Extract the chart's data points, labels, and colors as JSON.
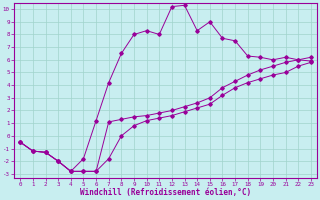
{
  "xlabel": "Windchill (Refroidissement éolien,°C)",
  "bg_color": "#c8eef0",
  "line_color": "#990099",
  "grid_color": "#a0d4cc",
  "xlim": [
    -0.5,
    23.5
  ],
  "ylim": [
    -3.3,
    10.5
  ],
  "xticks": [
    0,
    1,
    2,
    3,
    4,
    5,
    6,
    7,
    8,
    9,
    10,
    11,
    12,
    13,
    14,
    15,
    16,
    17,
    18,
    19,
    20,
    21,
    22,
    23
  ],
  "yticks": [
    -3,
    -2,
    -1,
    0,
    1,
    2,
    3,
    4,
    5,
    6,
    7,
    8,
    9,
    10
  ],
  "curve1_x": [
    0,
    1,
    2,
    3,
    4,
    5,
    6,
    7,
    8,
    9,
    10,
    11,
    12,
    13,
    14,
    15,
    16,
    17,
    18,
    19,
    20,
    21,
    22,
    23
  ],
  "curve1_y": [
    -0.5,
    -1.2,
    -1.3,
    -2.0,
    -2.8,
    -1.8,
    1.2,
    4.2,
    6.5,
    8.0,
    8.3,
    8.0,
    10.2,
    10.3,
    8.3,
    9.0,
    7.7,
    7.5,
    6.3,
    6.2,
    6.0,
    6.2,
    6.0,
    5.9
  ],
  "curve2_x": [
    0,
    1,
    2,
    3,
    4,
    5,
    6,
    7,
    8,
    9,
    10,
    11,
    12,
    13,
    14,
    15,
    16,
    17,
    18,
    19,
    20,
    21,
    22,
    23
  ],
  "curve2_y": [
    -0.5,
    -1.2,
    -1.3,
    -2.0,
    -2.8,
    -2.8,
    -2.8,
    1.1,
    1.3,
    1.5,
    1.6,
    1.8,
    2.0,
    2.3,
    2.6,
    3.0,
    3.8,
    4.3,
    4.8,
    5.2,
    5.5,
    5.8,
    6.0,
    6.2
  ],
  "curve3_x": [
    0,
    1,
    2,
    3,
    4,
    5,
    6,
    7,
    8,
    9,
    10,
    11,
    12,
    13,
    14,
    15,
    16,
    17,
    18,
    19,
    20,
    21,
    22,
    23
  ],
  "curve3_y": [
    -0.5,
    -1.2,
    -1.3,
    -2.0,
    -2.8,
    -2.8,
    -2.8,
    -1.8,
    0.0,
    0.8,
    1.2,
    1.4,
    1.6,
    1.9,
    2.2,
    2.5,
    3.2,
    3.8,
    4.2,
    4.5,
    4.8,
    5.0,
    5.5,
    5.8
  ]
}
